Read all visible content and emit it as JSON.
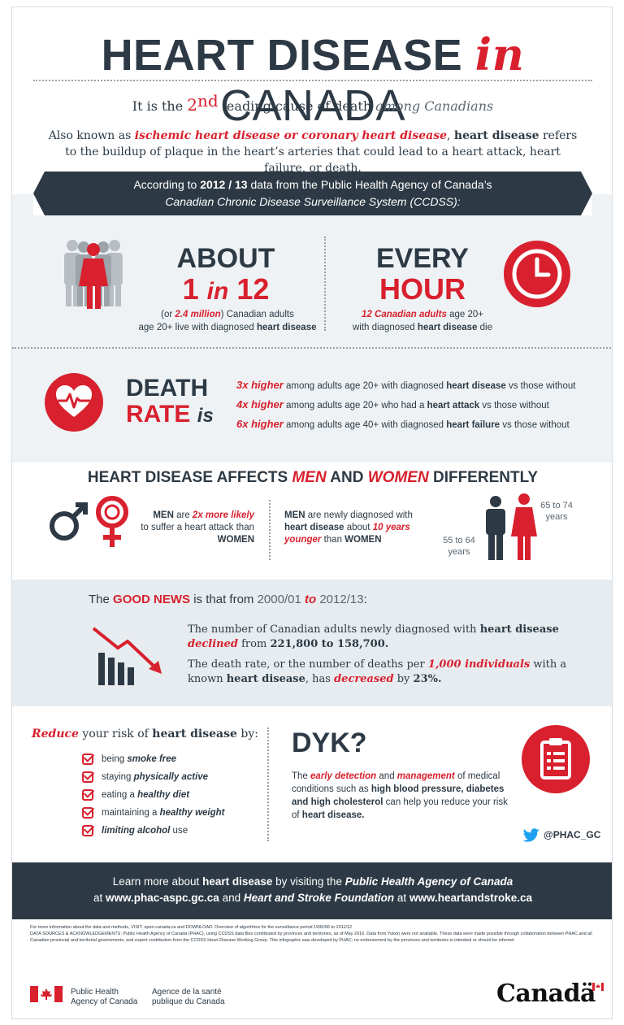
{
  "header": {
    "title_part1": "HEART DISEASE",
    "title_in": "in",
    "title_part2": "CANADA",
    "cause_a": "It is the",
    "cause_num": "2",
    "cause_sup": "nd",
    "cause_b": "leading cause of death",
    "cause_c": "among Canadians",
    "desc_a": "Also known as",
    "desc_term1": "ischemic heart disease or coronary heart disease",
    "desc_comma": ",",
    "desc_term2": "heart disease",
    "desc_b": "refers to the buildup of plaque in the heart’s arteries that could lead to a heart attack, heart failure, or death."
  },
  "banner": {
    "line1_a": "According to",
    "line1_year": "2012 / 13",
    "line1_b": "data from the Public Health Agency of Canada’s",
    "line2": "Canadian Chronic Disease Surveillance System (CCDSS):"
  },
  "stats": {
    "about_label": "ABOUT",
    "about_value_a": "1",
    "about_value_in": "in",
    "about_value_b": "12",
    "about_sub_a": "(or",
    "about_sub_num": "2.4 million",
    "about_sub_b": ") Canadian adults",
    "about_sub_c": "age 20+ live with diagnosed",
    "about_sub_d": "heart disease",
    "every_label": "EVERY",
    "hour_label": "HOUR",
    "every_sub_num": "12 Canadian adults",
    "every_sub_a": "age 20+",
    "every_sub_b": "with diagnosed",
    "every_sub_c": "heart disease",
    "every_sub_d": "die"
  },
  "death_rate": {
    "label1": "DEATH",
    "label2": "RATE",
    "label_is": "is",
    "lines": [
      {
        "x": "3x higher",
        "a": "among adults age 20+ with diagnosed",
        "b": "heart disease",
        "c": "vs those without"
      },
      {
        "x": "4x higher",
        "a": "among adults age 20+ who had a",
        "b": "heart attack",
        "c": "vs those without"
      },
      {
        "x": "6x higher",
        "a": "among adults age 40+ with diagnosed",
        "b": "heart failure",
        "c": "vs those without"
      }
    ]
  },
  "men_women": {
    "title_a": "HEART DISEASE AFFECTS",
    "title_men": "MEN",
    "title_and": "AND",
    "title_women": "WOMEN",
    "title_b": "DIFFERENTLY",
    "fact1_men": "MEN",
    "fact1_a": "are",
    "fact1_x": "2x more likely",
    "fact1_b": "to suffer a heart attack than",
    "fact1_women": "WOMEN",
    "fact2_men": "MEN",
    "fact2_a": "are newly diagnosed with",
    "fact2_b": "heart disease",
    "fact2_c": "about",
    "fact2_x": "10 years younger",
    "fact2_d": "than",
    "fact2_women": "WOMEN",
    "age_men": "55 to 64 years",
    "age_women": "65 to 74 years"
  },
  "good_news": {
    "a": "The",
    "gn": "GOOD NEWS",
    "b": "is that from",
    "y1": "2000/01",
    "to": "to",
    "y2": "2012/13",
    "colon": ":",
    "p1_a": "The number of Canadian adults newly diagnosed with",
    "p1_b": "heart disease",
    "p1_x": "declined",
    "p1_c": "from",
    "p1_d": "221,800 to 158,700.",
    "p2_a": "The death rate, or the number of deaths per",
    "p2_x": "1,000 individuals",
    "p2_b": "with a known",
    "p2_c": "heart disease",
    "p2_d": ", has",
    "p2_x2": "decreased",
    "p2_e": "by",
    "p2_f": "23%."
  },
  "reduce": {
    "r": "Reduce",
    "a": "your risk of",
    "b": "heart disease",
    "c": "by:",
    "items": [
      {
        "a": "being",
        "b": "smoke free",
        "c": ""
      },
      {
        "a": "staying",
        "b": "physically active",
        "c": ""
      },
      {
        "a": "eating a",
        "b": "healthy diet",
        "c": ""
      },
      {
        "a": "maintaining a",
        "b": "healthy weight",
        "c": ""
      },
      {
        "a": "",
        "b": "limiting alcohol",
        "c": "use"
      }
    ]
  },
  "dyk": {
    "title": "DYK?",
    "a": "The",
    "x1": "early detection",
    "b": "and",
    "x2": "management",
    "c": "of medical conditions such as",
    "d": "high blood pressure, diabetes and high cholesterol",
    "e": "can help you reduce your risk of",
    "f": "heart disease."
  },
  "twitter": "@PHAC_GC",
  "learn": {
    "a": "Learn more about",
    "b": "heart disease",
    "c": "by visiting the",
    "d": "Public Health Agency of Canada",
    "e": "at",
    "f": "www.phac-aspc.gc.ca",
    "g": "and",
    "h": "Heart and Stroke Foundation",
    "i": "at",
    "j": "www.heartandstroke.ca"
  },
  "fine_print": {
    "l1": "For more information about the data and methods, VISIT: open.canada.ca and DOWNLOAD: Overview of algorithms for the surveillance period 1995/96 to 2011/12",
    "l2": "DATA SOURCES & ACKNOWLEDGEMENTS: Public Health Agency of Canada (PHAC), using CCDSS data files contributed by provinces and territories, as of May 2016. Data from Yukon were not available. These data were made possible through collaboration between PHAC and all Canadian provincial and territorial governments, and expert contribution from the CCDSS Heart Disease Working Group. This infographic was developed by PHAC; no endorsement by the provinces and territories is intended or should be inferred."
  },
  "footer": {
    "phac_en_1": "Public Health",
    "phac_en_2": "Agency of Canada",
    "phac_fr_1": "Agence de la santé",
    "phac_fr_2": "publique du Canada",
    "wordmark": "Canadä"
  },
  "colors": {
    "accent": "#d8202e",
    "navy": "#2d3a45",
    "light_band": "#eef2f4"
  }
}
